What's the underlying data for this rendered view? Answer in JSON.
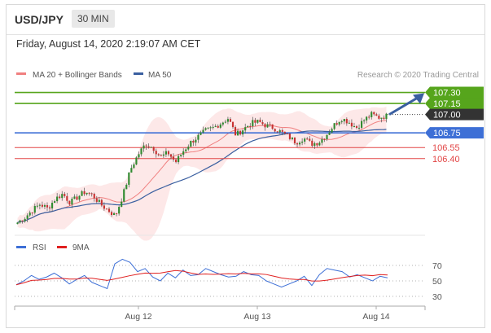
{
  "header": {
    "symbol": "USD/JPY",
    "timeframe": "30 MIN",
    "timestamp": "Friday, August 14, 2020 2:19:07 AM CET"
  },
  "legend": {
    "ma20_label": "MA 20 + Bollinger Bands",
    "ma50_label": "MA 50",
    "credit": "Research © 2020 Trading Central",
    "rsi_label": "RSI",
    "rsi_ma_label": "9MA"
  },
  "colors": {
    "target_green": "#56a51c",
    "pivot_blue": "#3d6fd6",
    "support_red": "#e24545",
    "current_dark": "#333333",
    "ma20": "#f08080",
    "ma50": "#3a5fa0",
    "band_fill": "#fde4e4",
    "candle_up": "#2f8a2f",
    "candle_down": "#c83232"
  },
  "levels": [
    {
      "label": "107.30",
      "type": "target"
    },
    {
      "label": "107.15",
      "type": "target"
    },
    {
      "label": "107.00",
      "type": "current"
    },
    {
      "label": "106.75",
      "type": "pivot"
    },
    {
      "label": "106.55",
      "type": "support"
    },
    {
      "label": "106.40",
      "type": "support"
    }
  ],
  "chart_data": {
    "type": "candlestick",
    "ylim": [
      105.4,
      107.45
    ],
    "x_tick_labels": [
      "Aug 12",
      "Aug 13",
      "Aug 14"
    ],
    "price_path": [
      105.53,
      105.6,
      105.7,
      105.78,
      105.72,
      105.85,
      105.92,
      105.8,
      105.88,
      105.95,
      105.9,
      105.78,
      105.7,
      105.62,
      105.9,
      106.25,
      106.45,
      106.6,
      106.55,
      106.42,
      106.48,
      106.35,
      106.5,
      106.62,
      106.7,
      106.78,
      106.82,
      106.88,
      106.95,
      106.72,
      106.8,
      106.88,
      106.9,
      106.85,
      106.82,
      106.76,
      106.7,
      106.62,
      106.68,
      106.6,
      106.62,
      106.72,
      106.85,
      106.95,
      106.9,
      106.82,
      106.92,
      107.0,
      106.96,
      106.98
    ],
    "rsi_levels": [
      70,
      50,
      30
    ],
    "rsi": [
      45,
      50,
      57,
      52,
      55,
      60,
      54,
      46,
      52,
      57,
      48,
      44,
      40,
      72,
      78,
      74,
      62,
      66,
      55,
      50,
      60,
      54,
      64,
      57,
      58,
      66,
      62,
      58,
      55,
      56,
      62,
      58,
      57,
      50,
      46,
      42,
      46,
      50,
      56,
      44,
      58,
      66,
      64,
      62,
      55,
      58,
      54,
      50,
      56,
      54
    ]
  },
  "forecast": {
    "from": 107.0,
    "to": 107.3
  }
}
